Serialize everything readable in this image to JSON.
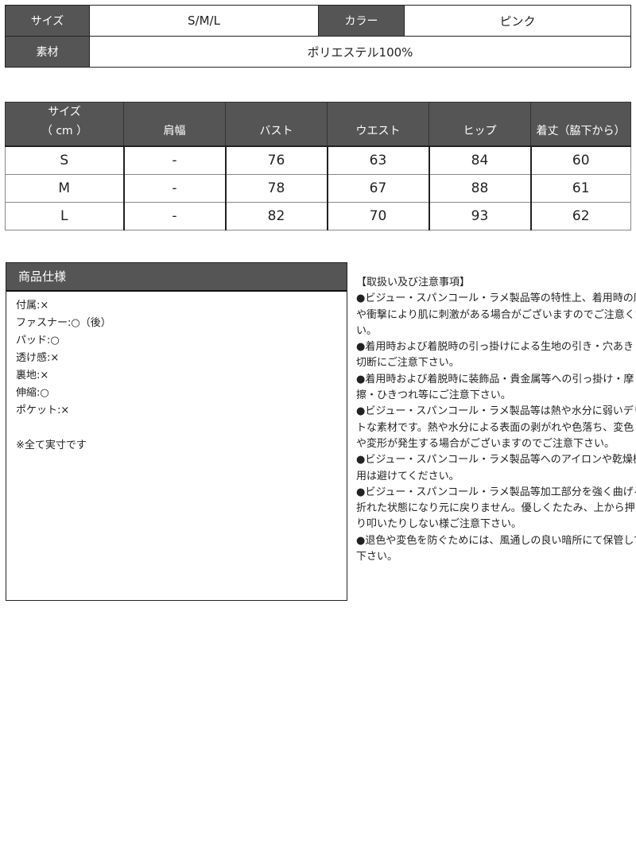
{
  "basic_info": {
    "size_label": "サイズ",
    "size_value": "S/M/L",
    "color_label": "カラー",
    "color_value": "ピンク",
    "material_label": "素材",
    "material_value": "ポリエステル100%"
  },
  "size_table": {
    "header_line1": "サイズ",
    "header_line2": "（ cm ）",
    "columns": [
      "肩幅",
      "バスト",
      "ウエスト",
      "ヒップ",
      "着丈（脇下から）"
    ],
    "rows": [
      {
        "size": "S",
        "values": [
          "-",
          "76",
          "63",
          "84",
          "60"
        ]
      },
      {
        "size": "M",
        "values": [
          "-",
          "78",
          "67",
          "88",
          "61"
        ]
      },
      {
        "size": "L",
        "values": [
          "-",
          "82",
          "70",
          "93",
          "62"
        ]
      }
    ]
  },
  "spec": {
    "title": "商品仕様",
    "items": [
      "付属:×",
      "ファスナー:○（後）",
      "パッド:○",
      "透け感:×",
      "裏地:×",
      "伸縮:○",
      "ポケット:×"
    ],
    "note": "※全て実寸です"
  },
  "notes": {
    "lines": [
      "【取扱い及び注意事項】",
      "●ビジュー・スパンコール・ラメ製品等の特性上、着用時の摩擦",
      "や衝撃により肌に刺激がある場合がございますのでご注意くださ",
      "い。",
      "●着用時および着脱時の引っ掛けによる生地の引き・穴あき・",
      "切断にご注意下さい。",
      "●着用時および着脱時に装飾品・貴金属等への引っ掛け・摩",
      "擦・ひきつれ等にご注意下さい。",
      "●ビジュー・スパンコール・ラメ製品等は熱や水分に弱いデリケー",
      "トな素材です。熱や水分による表面の剥がれや色落ち、変色",
      "や変形が発生する場合がございますのでご注意下さい。",
      "●ビジュー・スパンコール・ラメ製品等へのアイロンや乾燥機の使",
      "用は避けてください。",
      "●ビジュー・スパンコール・ラメ製品等加工部分を強く曲げると",
      "折れた状態になり元に戻りません。優しくたたみ、上から押さえた",
      "り叩いたりしない様ご注意下さい。",
      "●退色や変色を防ぐためには、風通しの良い暗所にて保管して",
      "下さい。"
    ]
  }
}
